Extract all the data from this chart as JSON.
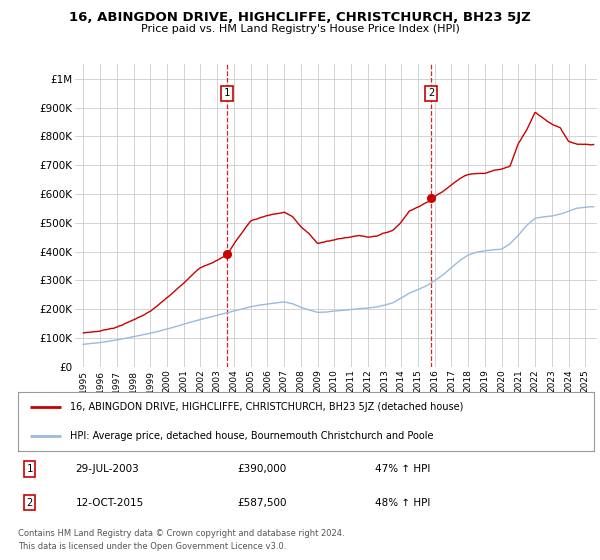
{
  "title": "16, ABINGDON DRIVE, HIGHCLIFFE, CHRISTCHURCH, BH23 5JZ",
  "subtitle": "Price paid vs. HM Land Registry's House Price Index (HPI)",
  "ylim": [
    0,
    1050000
  ],
  "xlim_start": 1994.5,
  "xlim_end": 2025.7,
  "yticks": [
    0,
    100000,
    200000,
    300000,
    400000,
    500000,
    600000,
    700000,
    800000,
    900000,
    1000000
  ],
  "ytick_labels": [
    "£0",
    "£100K",
    "£200K",
    "£300K",
    "£400K",
    "£500K",
    "£600K",
    "£700K",
    "£800K",
    "£900K",
    "£1M"
  ],
  "xticks": [
    1995,
    1996,
    1997,
    1998,
    1999,
    2000,
    2001,
    2002,
    2003,
    2004,
    2005,
    2006,
    2007,
    2008,
    2009,
    2010,
    2011,
    2012,
    2013,
    2014,
    2015,
    2016,
    2017,
    2018,
    2019,
    2020,
    2021,
    2022,
    2023,
    2024,
    2025
  ],
  "red_line_color": "#cc0000",
  "blue_line_color": "#99bbdd",
  "dashed_vline_color": "#cc0000",
  "sale1_x": 2003.58,
  "sale1_y": 390000,
  "sale1_label": "1",
  "sale1_date": "29-JUL-2003",
  "sale1_price": "£390,000",
  "sale1_hpi": "47% ↑ HPI",
  "sale2_x": 2015.79,
  "sale2_y": 587500,
  "sale2_label": "2",
  "sale2_date": "12-OCT-2015",
  "sale2_price": "£587,500",
  "sale2_hpi": "48% ↑ HPI",
  "legend_line1": "16, ABINGDON DRIVE, HIGHCLIFFE, CHRISTCHURCH, BH23 5JZ (detached house)",
  "legend_line2": "HPI: Average price, detached house, Bournemouth Christchurch and Poole",
  "footer1": "Contains HM Land Registry data © Crown copyright and database right 2024.",
  "footer2": "This data is licensed under the Open Government Licence v3.0.",
  "background_color": "#ffffff",
  "grid_color": "#cccccc",
  "red_anchors_x": [
    1995,
    1996,
    1997,
    1998,
    1999,
    2000,
    2001,
    2002,
    2003.58,
    2004,
    2005,
    2006,
    2007,
    2007.5,
    2008,
    2008.5,
    2009,
    2009.5,
    2010,
    2010.5,
    2011,
    2011.5,
    2012,
    2012.5,
    2013,
    2013.5,
    2014,
    2014.5,
    2015.79,
    2016,
    2016.5,
    2017,
    2017.5,
    2018,
    2018.5,
    2019,
    2019.5,
    2020,
    2020.5,
    2021,
    2021.5,
    2022,
    2022.5,
    2023,
    2023.5,
    2024,
    2024.5,
    2025.3
  ],
  "red_anchors_y": [
    118000,
    125000,
    140000,
    165000,
    195000,
    240000,
    290000,
    345000,
    390000,
    430000,
    510000,
    530000,
    540000,
    525000,
    490000,
    465000,
    430000,
    440000,
    445000,
    450000,
    455000,
    460000,
    455000,
    460000,
    470000,
    480000,
    510000,
    550000,
    587500,
    600000,
    620000,
    645000,
    665000,
    680000,
    685000,
    685000,
    695000,
    700000,
    710000,
    790000,
    840000,
    900000,
    880000,
    860000,
    850000,
    800000,
    790000,
    785000
  ],
  "blue_anchors_x": [
    1995,
    1996,
    1997,
    1998,
    1999,
    2000,
    2001,
    2002,
    2003,
    2004,
    2005,
    2006,
    2007,
    2007.5,
    2008,
    2008.5,
    2009,
    2009.5,
    2010,
    2010.5,
    2011,
    2011.5,
    2012,
    2012.5,
    2013,
    2013.5,
    2014,
    2014.5,
    2015,
    2015.5,
    2016,
    2016.5,
    2017,
    2017.5,
    2018,
    2018.5,
    2019,
    2019.5,
    2020,
    2020.5,
    2021,
    2021.5,
    2022,
    2022.5,
    2023,
    2023.5,
    2024,
    2024.5,
    2025.3
  ],
  "blue_anchors_y": [
    78000,
    83000,
    92000,
    103000,
    115000,
    130000,
    148000,
    165000,
    180000,
    195000,
    210000,
    220000,
    228000,
    222000,
    210000,
    200000,
    192000,
    193000,
    196000,
    198000,
    200000,
    203000,
    205000,
    208000,
    215000,
    223000,
    240000,
    258000,
    270000,
    282000,
    300000,
    320000,
    345000,
    370000,
    390000,
    400000,
    405000,
    408000,
    410000,
    430000,
    460000,
    495000,
    520000,
    525000,
    528000,
    535000,
    545000,
    555000,
    560000
  ]
}
